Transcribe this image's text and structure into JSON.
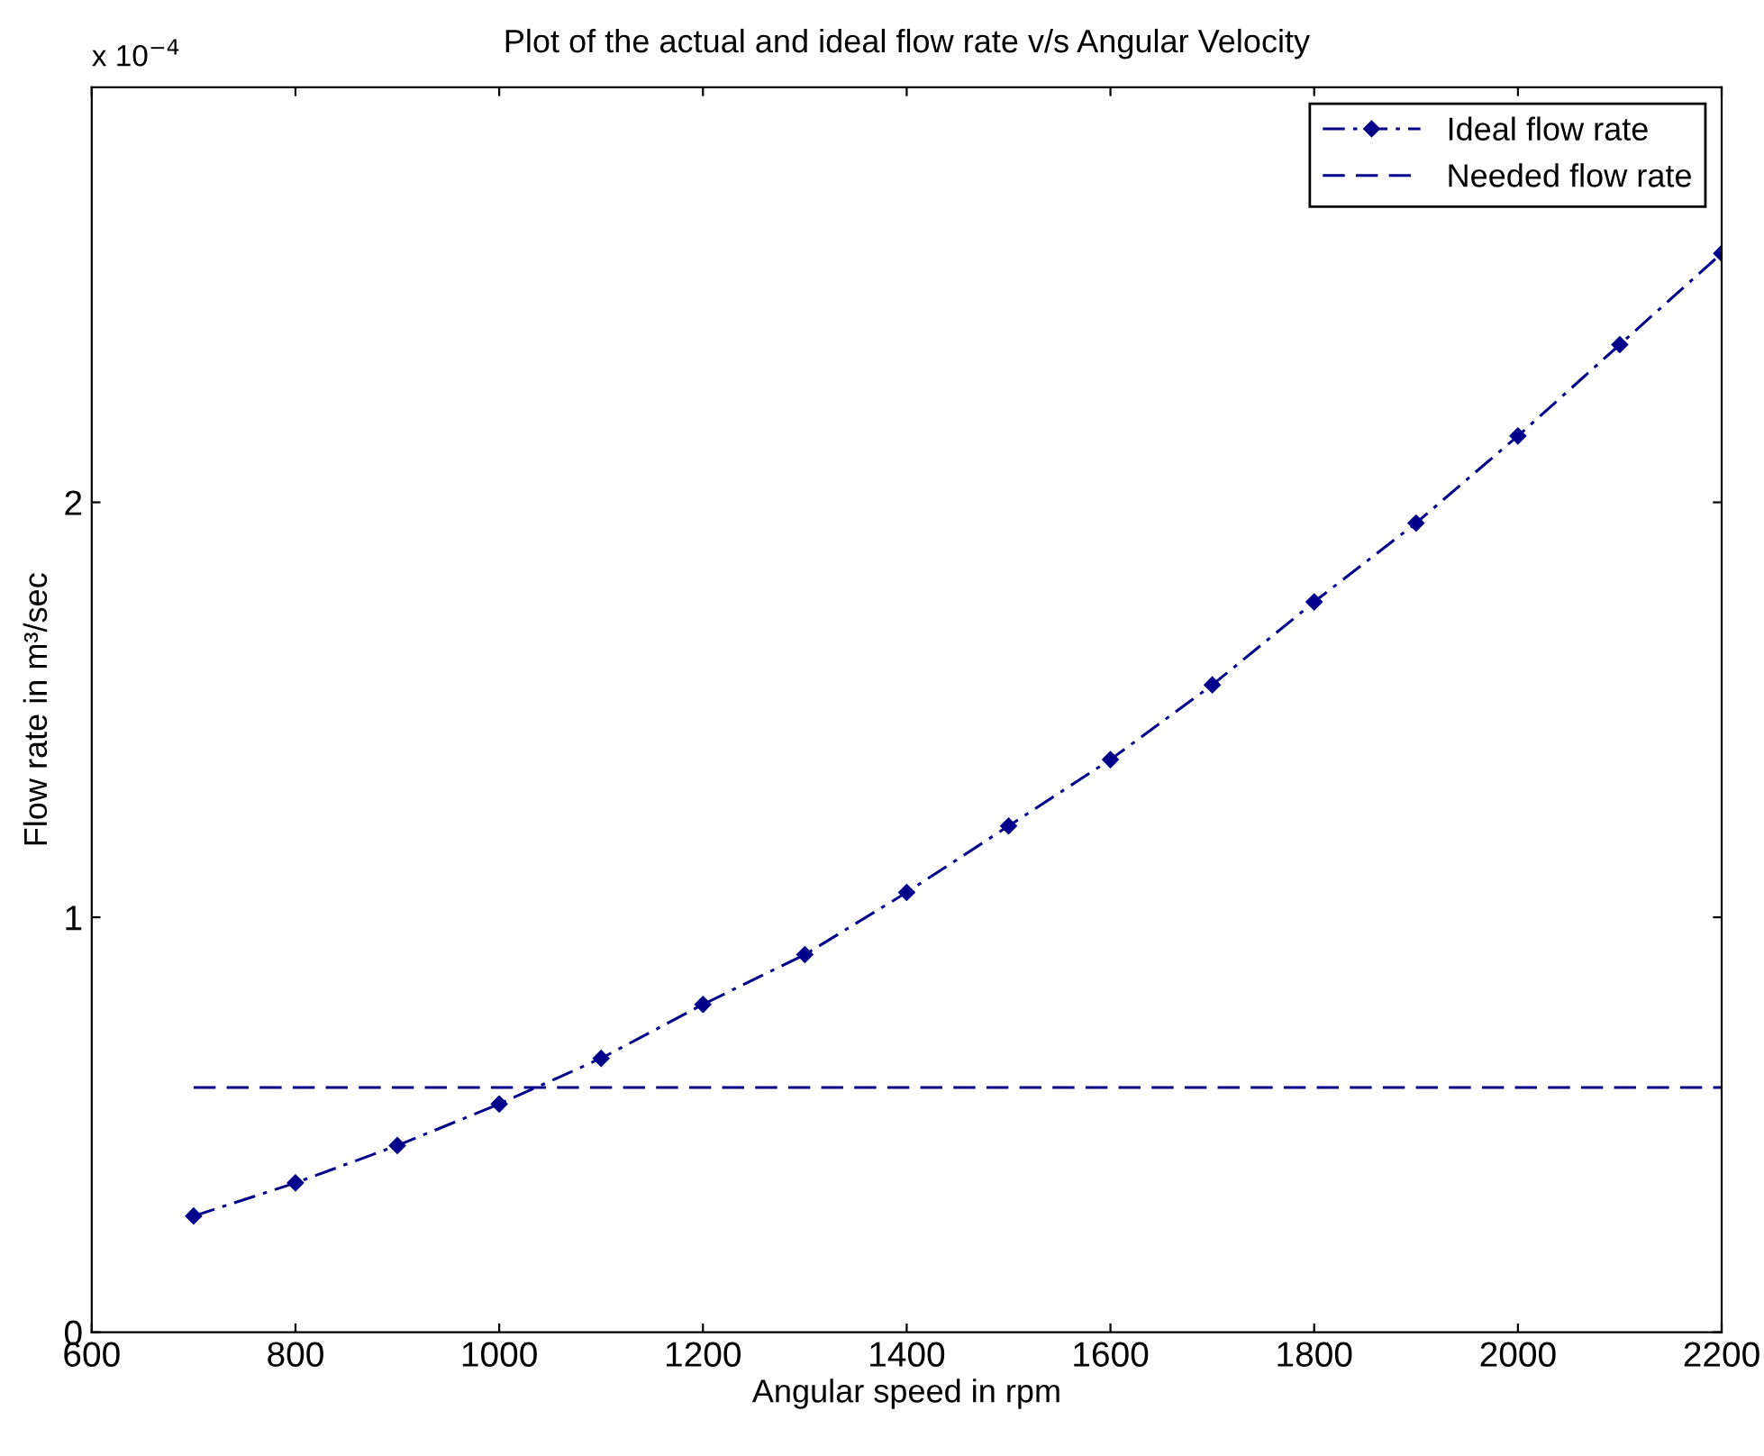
{
  "chart_data": {
    "type": "line",
    "title": "Plot of the actual and ideal flow rate v/s Angular Velocity",
    "xlabel": "Angular speed in rpm",
    "ylabel": "Flow rate in m³/sec",
    "annotations": [
      "x 10$^{−4}$"
    ],
    "series": [
      {
        "name": "Ideal flow rate",
        "color": "#00008b",
        "line_style": "dashdot",
        "marker": "diamond",
        "x": [
          700,
          800,
          900,
          1000,
          1100,
          1200,
          1300,
          1400,
          1500,
          1600,
          1700,
          1800,
          1900,
          2000,
          2100,
          2200
        ],
        "values": [
          0.28,
          0.36,
          0.45,
          0.55,
          0.66,
          0.79,
          0.91,
          1.06,
          1.22,
          1.38,
          1.56,
          1.76,
          1.95,
          2.16,
          2.38,
          2.6
        ]
      },
      {
        "name": "Needed flow rate",
        "color": "#00008b",
        "line_style": "dashed",
        "marker": "none",
        "x": [
          700,
          2200
        ],
        "values": [
          0.59,
          0.59
        ]
      }
    ],
    "xlim": [
      600,
      2200
    ],
    "ylim": [
      0,
      3
    ],
    "xticks": [
      600,
      800,
      1000,
      1200,
      1400,
      1600,
      1800,
      2000,
      2200
    ],
    "yticks": [
      0,
      1,
      2
    ],
    "grid": false,
    "legend": "top right"
  }
}
